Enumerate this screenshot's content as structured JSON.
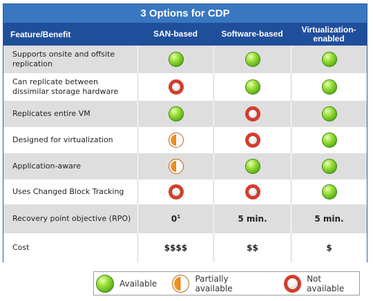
{
  "title": "3 Options for CDP",
  "header": {
    "feature": "Feature/Benefit",
    "san": "SAN-based",
    "software": "Software-based",
    "virt_line1": "Virtualization-",
    "virt_line2": "enabled"
  },
  "rows": [
    {
      "label": "Supports onsite and offsite replication",
      "san": "available",
      "software": "available",
      "virt": "available"
    },
    {
      "label": "Can replicate between dissimilar storage hardware",
      "san": "not-available",
      "software": "available",
      "virt": "available"
    },
    {
      "label": "Replicates entire VM",
      "san": "available",
      "software": "not-available",
      "virt": "available"
    },
    {
      "label": "Designed for virtualization",
      "san": "partially-available",
      "software": "not-available",
      "virt": "available"
    },
    {
      "label": "Application-aware",
      "san": "partially-available",
      "software": "available",
      "virt": "available"
    },
    {
      "label": "Uses Changed Block Tracking",
      "san": "not-available",
      "software": "not-available",
      "virt": "available"
    },
    {
      "label": "Recovery point objective (RPO)",
      "san_text": "0",
      "san_sup": "1",
      "software_text": "5 min.",
      "virt_text": "5 min."
    },
    {
      "label": "Cost",
      "san_text": "$$$$",
      "software_text": "$$",
      "virt_text": "$"
    }
  ],
  "legend": {
    "available": "Available",
    "partial": "Partially available",
    "not": "Not available"
  },
  "colors": {
    "title_bg": "#3977c0",
    "header_bg": "#1f4e9b",
    "shade_row": "#dedede",
    "available": "#6cc21e",
    "partial": "#e8851a",
    "not_available": "#d83b2a"
  }
}
